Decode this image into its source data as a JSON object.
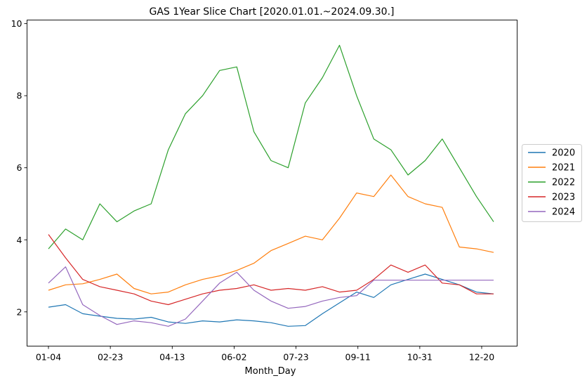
{
  "chart_data": {
    "type": "line",
    "title": "GAS 1Year Slice Chart [2020.01.01.~2024.09.30.]",
    "xlabel": "Month_Day",
    "ylabel": "",
    "x_tick_labels": [
      "01-04",
      "02-23",
      "04-13",
      "06-02",
      "07-23",
      "09-11",
      "10-31",
      "12-20"
    ],
    "y_tick_labels": [
      "2",
      "4",
      "6",
      "8",
      "10"
    ],
    "ylim": [
      1.05,
      10.1
    ],
    "grid": false,
    "legend_position": "right",
    "x": [
      "01-04",
      "01-18",
      "02-01",
      "02-15",
      "03-01",
      "03-15",
      "03-29",
      "04-12",
      "04-26",
      "05-10",
      "05-24",
      "06-07",
      "06-21",
      "07-05",
      "07-19",
      "08-02",
      "08-16",
      "08-30",
      "09-13",
      "09-27",
      "10-11",
      "10-25",
      "11-08",
      "11-22",
      "12-06",
      "12-20",
      "12-27"
    ],
    "series": [
      {
        "name": "2020",
        "color": "#1f77b4",
        "values": [
          2.13,
          2.2,
          1.95,
          1.88,
          1.82,
          1.8,
          1.85,
          1.72,
          1.68,
          1.75,
          1.72,
          1.78,
          1.75,
          1.7,
          1.6,
          1.62,
          1.95,
          2.25,
          2.55,
          2.4,
          2.75,
          2.9,
          3.05,
          2.9,
          2.75,
          2.55,
          2.5
        ]
      },
      {
        "name": "2021",
        "color": "#ff7f0e",
        "values": [
          2.6,
          2.75,
          2.78,
          2.9,
          3.05,
          2.65,
          2.5,
          2.55,
          2.75,
          2.9,
          3.0,
          3.15,
          3.35,
          3.7,
          3.9,
          4.1,
          4.0,
          4.6,
          5.3,
          5.2,
          5.8,
          5.2,
          5.0,
          4.9,
          3.8,
          3.75,
          3.65
        ]
      },
      {
        "name": "2022",
        "color": "#2ca02c",
        "values": [
          3.75,
          4.3,
          4.0,
          5.0,
          4.5,
          4.8,
          5.0,
          6.5,
          7.5,
          8.0,
          8.7,
          8.8,
          7.0,
          6.2,
          6.0,
          7.8,
          8.5,
          9.4,
          8.0,
          6.8,
          6.5,
          5.8,
          6.2,
          6.8,
          6.0,
          5.2,
          4.5
        ]
      },
      {
        "name": "2023",
        "color": "#d62728",
        "values": [
          4.15,
          3.5,
          2.9,
          2.7,
          2.6,
          2.5,
          2.3,
          2.2,
          2.35,
          2.5,
          2.6,
          2.65,
          2.75,
          2.6,
          2.65,
          2.6,
          2.7,
          2.55,
          2.6,
          2.9,
          3.3,
          3.1,
          3.3,
          2.8,
          2.75,
          2.5,
          2.5
        ]
      },
      {
        "name": "2024",
        "color": "#9467bd",
        "values": [
          2.8,
          3.25,
          2.2,
          1.9,
          1.65,
          1.75,
          1.7,
          1.6,
          1.8,
          2.3,
          2.8,
          3.1,
          2.6,
          2.3,
          2.1,
          2.15,
          2.3,
          2.4,
          2.45,
          2.88,
          2.88,
          2.88,
          2.88,
          2.88,
          2.88,
          2.88,
          2.88
        ]
      }
    ]
  }
}
